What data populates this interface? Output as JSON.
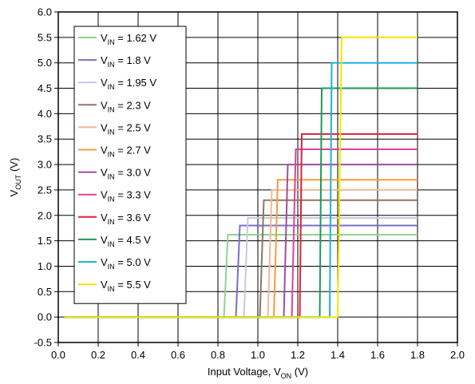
{
  "chart_data": {
    "type": "line",
    "title": "",
    "xlabel": {
      "main": "Input Voltage, V",
      "sub": "ON",
      "unit": " (V)"
    },
    "ylabel": {
      "main": "V",
      "sub": "OUT",
      "unit": " (V)"
    },
    "xlim": [
      0,
      2.0
    ],
    "ylim": [
      -0.5,
      6.0
    ],
    "xticks": [
      "0.0",
      "0.2",
      "0.4",
      "0.6",
      "0.8",
      "1.0",
      "1.2",
      "1.4",
      "1.6",
      "1.8",
      "2.0"
    ],
    "yticks": [
      "-0.5",
      "0.0",
      "0.5",
      "1.0",
      "1.5",
      "2.0",
      "2.5",
      "3.0",
      "3.5",
      "4.0",
      "4.5",
      "5.0",
      "5.5",
      "6.0"
    ],
    "grid": true,
    "legend_position": "top-left",
    "legend_prefix": "V",
    "legend_sub": "IN",
    "series": [
      {
        "name": " = 1.62 V",
        "color": "#8fd28f",
        "vin": 1.62,
        "threshold": 0.83,
        "x": [
          0.03,
          0.83,
          0.85,
          1.8
        ],
        "y": [
          0.0,
          0.0,
          1.62,
          1.62
        ]
      },
      {
        "name": " = 1.8 V",
        "color": "#7a6fc8",
        "vin": 1.8,
        "threshold": 0.89,
        "x": [
          0.03,
          0.89,
          0.91,
          1.8
        ],
        "y": [
          0.0,
          0.0,
          1.8,
          1.8
        ]
      },
      {
        "name": " = 1.95 V",
        "color": "#c8c8e0",
        "vin": 1.95,
        "threshold": 0.93,
        "x": [
          0.03,
          0.93,
          0.95,
          1.8
        ],
        "y": [
          0.0,
          0.0,
          1.95,
          1.95
        ]
      },
      {
        "name": " = 2.3 V",
        "color": "#8b7766",
        "vin": 2.3,
        "threshold": 1.01,
        "x": [
          0.03,
          1.01,
          1.03,
          1.8
        ],
        "y": [
          0.0,
          0.0,
          2.3,
          2.3
        ]
      },
      {
        "name": " = 2.5 V",
        "color": "#f0b898",
        "vin": 2.5,
        "threshold": 1.05,
        "x": [
          0.03,
          1.05,
          1.07,
          1.8
        ],
        "y": [
          0.0,
          0.0,
          2.5,
          2.5
        ]
      },
      {
        "name": " = 2.7 V",
        "color": "#f39c3c",
        "vin": 2.7,
        "threshold": 1.08,
        "x": [
          0.03,
          1.08,
          1.1,
          1.8
        ],
        "y": [
          0.0,
          0.0,
          2.7,
          2.7
        ]
      },
      {
        "name": " = 3.0 V",
        "color": "#9b4f9b",
        "vin": 3.0,
        "threshold": 1.13,
        "x": [
          0.03,
          1.13,
          1.15,
          1.8
        ],
        "y": [
          0.0,
          0.0,
          3.0,
          3.0
        ]
      },
      {
        "name": " = 3.3 V",
        "color": "#e0409b",
        "vin": 3.3,
        "threshold": 1.17,
        "x": [
          0.03,
          1.17,
          1.19,
          1.8
        ],
        "y": [
          0.0,
          0.0,
          3.3,
          3.3
        ]
      },
      {
        "name": " = 3.6 V",
        "color": "#e0203c",
        "vin": 3.6,
        "threshold": 1.21,
        "x": [
          0.03,
          1.21,
          1.22,
          1.8
        ],
        "y": [
          0.0,
          0.0,
          3.6,
          3.6
        ]
      },
      {
        "name": " = 4.5 V",
        "color": "#1a9a5a",
        "vin": 4.5,
        "threshold": 1.31,
        "x": [
          0.03,
          1.31,
          1.32,
          1.8
        ],
        "y": [
          0.0,
          0.0,
          4.5,
          4.5
        ]
      },
      {
        "name": " = 5.0 V",
        "color": "#20b0e0",
        "vin": 5.0,
        "threshold": 1.36,
        "x": [
          0.03,
          1.36,
          1.37,
          1.8
        ],
        "y": [
          0.0,
          0.0,
          5.0,
          5.0
        ]
      },
      {
        "name": " = 5.5 V",
        "color": "#f5e600",
        "vin": 5.5,
        "threshold": 1.4,
        "x": [
          0.03,
          1.4,
          1.42,
          1.8
        ],
        "y": [
          0.0,
          0.0,
          5.5,
          5.5
        ]
      }
    ]
  }
}
